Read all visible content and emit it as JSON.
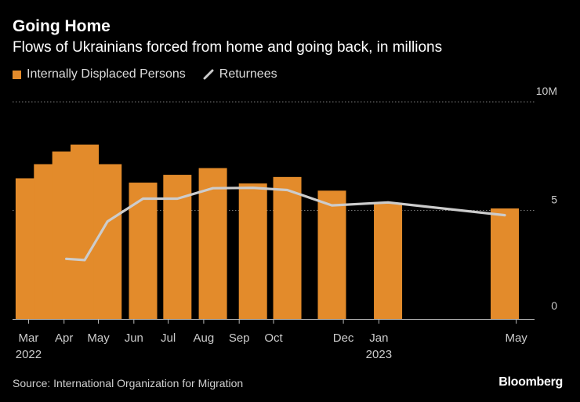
{
  "header": {
    "title": "Going Home",
    "subtitle": "Flows of Ukrainians forced from home and going back, in millions"
  },
  "legend": {
    "items": [
      {
        "label": "Internally Displaced Persons",
        "kind": "bar"
      },
      {
        "label": "Returnees",
        "kind": "line"
      }
    ]
  },
  "footer": {
    "source": "Source: International Organization for Migration",
    "logo": "Bloomberg"
  },
  "colors": {
    "bar": "#e38b2b",
    "line": "#cccccc",
    "grid": "#777777",
    "axis_text": "#cccccc"
  },
  "chart_data": {
    "type": "bar",
    "title": "Going Home",
    "subtitle": "Flows of Ukrainians forced from home and going back, in millions",
    "x_axis": {
      "type": "date",
      "range": [
        "2022-03-01",
        "2023-05-31"
      ],
      "tick_labels": [
        {
          "date": "2022-03-15",
          "label": "Mar",
          "sublabel": "2022"
        },
        {
          "date": "2022-04-15",
          "label": "Apr",
          "sublabel": ""
        },
        {
          "date": "2022-05-15",
          "label": "May",
          "sublabel": ""
        },
        {
          "date": "2022-06-15",
          "label": "Jun",
          "sublabel": ""
        },
        {
          "date": "2022-07-15",
          "label": "Jul",
          "sublabel": ""
        },
        {
          "date": "2022-08-15",
          "label": "Aug",
          "sublabel": ""
        },
        {
          "date": "2022-09-15",
          "label": "Sep",
          "sublabel": ""
        },
        {
          "date": "2022-10-15",
          "label": "Oct",
          "sublabel": ""
        },
        {
          "date": "2022-12-15",
          "label": "Dec",
          "sublabel": ""
        },
        {
          "date": "2023-01-15",
          "label": "Jan",
          "sublabel": "2023"
        },
        {
          "date": "2023-05-15",
          "label": "May",
          "sublabel": ""
        }
      ]
    },
    "y_axis": {
      "range": [
        0,
        10
      ],
      "ticks": [
        {
          "value": 0,
          "label": "0"
        },
        {
          "value": 5,
          "label": "5"
        },
        {
          "value": 10,
          "label": "10M"
        }
      ],
      "side": "right",
      "grid": true
    },
    "series": [
      {
        "name": "Internally Displaced Persons",
        "type": "bar",
        "points": [
          {
            "date": "2022-03-16",
            "value": 6.48
          },
          {
            "date": "2022-04-01",
            "value": 7.13
          },
          {
            "date": "2022-04-17",
            "value": 7.71
          },
          {
            "date": "2022-05-03",
            "value": 8.03
          },
          {
            "date": "2022-05-23",
            "value": 7.13
          },
          {
            "date": "2022-06-23",
            "value": 6.28
          },
          {
            "date": "2022-07-23",
            "value": 6.64
          },
          {
            "date": "2022-08-23",
            "value": 6.95
          },
          {
            "date": "2022-09-27",
            "value": 6.24
          },
          {
            "date": "2022-10-27",
            "value": 6.54
          },
          {
            "date": "2022-12-05",
            "value": 5.91
          },
          {
            "date": "2023-01-23",
            "value": 5.35
          },
          {
            "date": "2023-05-05",
            "value": 5.09
          }
        ]
      },
      {
        "name": "Returnees",
        "type": "line",
        "points": [
          {
            "date": "2022-04-17",
            "value": 2.77
          },
          {
            "date": "2022-05-03",
            "value": 2.71
          },
          {
            "date": "2022-05-23",
            "value": 4.49
          },
          {
            "date": "2022-06-23",
            "value": 5.54
          },
          {
            "date": "2022-07-23",
            "value": 5.54
          },
          {
            "date": "2022-08-23",
            "value": 6.02
          },
          {
            "date": "2022-09-27",
            "value": 6.04
          },
          {
            "date": "2022-10-27",
            "value": 5.94
          },
          {
            "date": "2022-12-05",
            "value": 5.23
          },
          {
            "date": "2023-01-23",
            "value": 5.37
          },
          {
            "date": "2023-05-05",
            "value": 4.78
          }
        ]
      }
    ],
    "legend": "top-left"
  }
}
